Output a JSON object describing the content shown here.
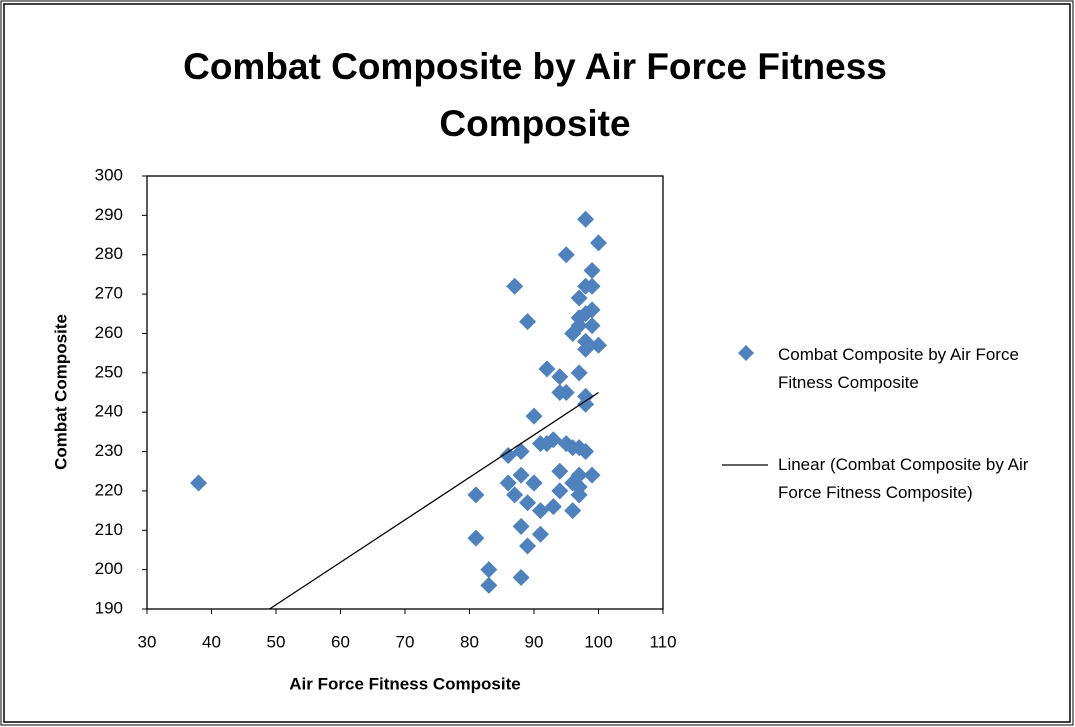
{
  "chart_data": {
    "type": "scatter",
    "title": "Combat Composite by Air Force Fitness Composite",
    "x_label": "Air Force Fitness Composite",
    "y_label": "Combat Composite",
    "xlim": [
      30,
      110
    ],
    "xticks": [
      30,
      40,
      50,
      60,
      70,
      80,
      90,
      100,
      110
    ],
    "ylim": [
      190,
      300
    ],
    "yticks": [
      190,
      200,
      210,
      220,
      230,
      240,
      250,
      260,
      270,
      280,
      290,
      300
    ],
    "grid": false,
    "legend": "right",
    "series": [
      {
        "name": "Combat Composite by Air Force Fitness Composite",
        "color": "#4f81bd",
        "x": [
          38,
          81,
          81,
          83,
          83,
          86,
          86,
          87,
          87,
          88,
          88,
          88,
          88,
          89,
          89,
          89,
          90,
          90,
          90,
          91,
          91,
          91,
          92,
          92,
          93,
          93,
          94,
          94,
          94,
          94,
          95,
          95,
          95,
          96,
          96,
          96,
          96,
          97,
          97,
          97,
          97,
          97,
          97,
          97,
          98,
          98,
          98,
          98,
          98,
          98,
          98,
          98,
          99,
          99,
          99,
          99,
          99,
          100,
          100,
          97
        ],
        "values": [
          222,
          219,
          208,
          200,
          196,
          229,
          222,
          272,
          219,
          230,
          224,
          211,
          198,
          206,
          263,
          217,
          222,
          239,
          222,
          215,
          209,
          232,
          251,
          232,
          233,
          216,
          225,
          220,
          245,
          249,
          232,
          245,
          280,
          231,
          260,
          215,
          222,
          250,
          264,
          269,
          231,
          224,
          221,
          219,
          289,
          272,
          258,
          265,
          230,
          244,
          242,
          256,
          266,
          262,
          276,
          272,
          224,
          283,
          257,
          262
        ]
      }
    ],
    "trendline": {
      "name": "Linear (Combat Composite by Air Force Fitness Composite)",
      "color": "#000000",
      "x": [
        49,
        100
      ],
      "values": [
        190,
        245
      ]
    }
  }
}
